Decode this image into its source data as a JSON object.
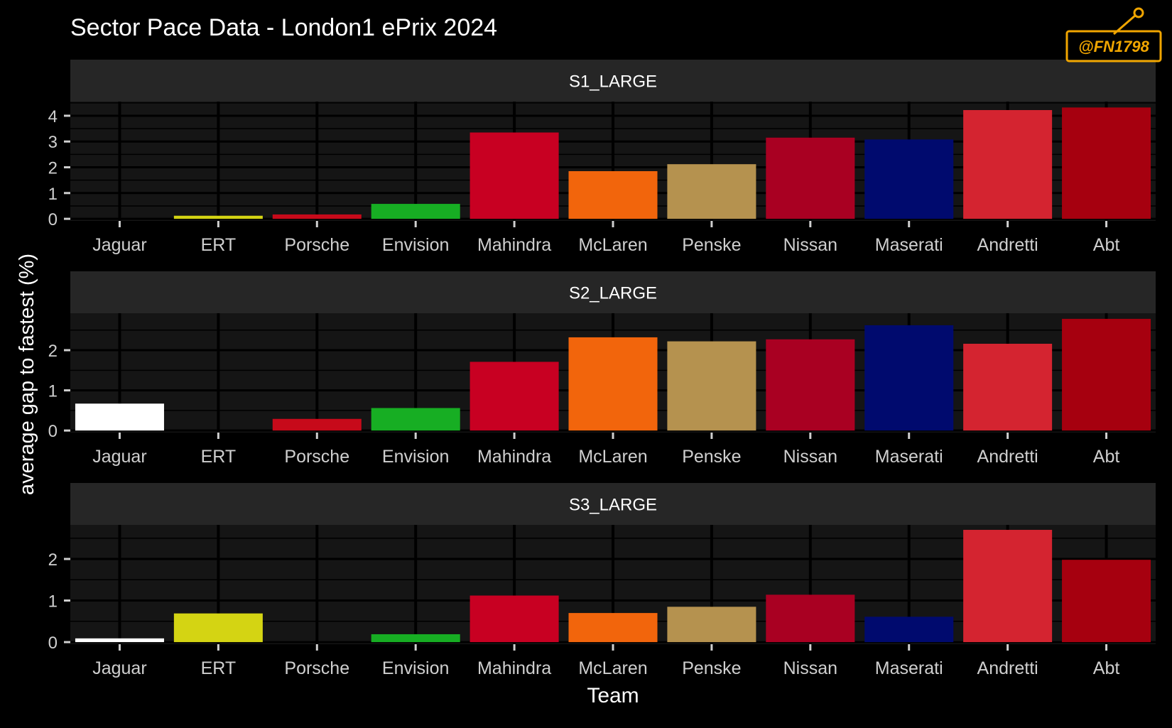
{
  "title": "Sector Pace Data - London1 ePrix 2024",
  "watermark": "@FN1798",
  "xlabel": "Team",
  "ylabel": "average gap to fastest (%)",
  "colors": {
    "background": "#000000",
    "panel": "#151515",
    "strip": "#262626",
    "grid": "#000000",
    "text": "#ffffff",
    "tick_text": "#cfcfcf",
    "watermark": "#f0a500"
  },
  "team_colors": {
    "Jaguar": "#ffffff",
    "ERT": "#d4d413",
    "Porsche": "#c70a1a",
    "Envision": "#17ae23",
    "Mahindra": "#c80022",
    "McLaren": "#f2650c",
    "Penske": "#b5924f",
    "Nissan": "#a90022",
    "Maserati": "#000a6e",
    "Andretti": "#d42430",
    "Abt": "#a6000f"
  },
  "chart_data": [
    {
      "type": "bar",
      "facet": "S1_LARGE",
      "categories": [
        "Jaguar",
        "ERT",
        "Porsche",
        "Envision",
        "Mahindra",
        "McLaren",
        "Penske",
        "Nissan",
        "Maserati",
        "Andretti",
        "Abt"
      ],
      "values": [
        0,
        0.12,
        0.17,
        0.58,
        3.35,
        1.85,
        2.12,
        3.15,
        3.08,
        4.22,
        4.32
      ],
      "yticks": [
        0,
        1,
        2,
        3,
        4
      ],
      "ylim": [
        -0.08,
        4.55
      ]
    },
    {
      "type": "bar",
      "facet": "S2_LARGE",
      "categories": [
        "Jaguar",
        "ERT",
        "Porsche",
        "Envision",
        "Mahindra",
        "McLaren",
        "Penske",
        "Nissan",
        "Maserati",
        "Andretti",
        "Abt"
      ],
      "values": [
        0.67,
        0,
        0.29,
        0.56,
        1.71,
        2.32,
        2.22,
        2.27,
        2.62,
        2.16,
        2.78
      ],
      "yticks": [
        0,
        1,
        2
      ],
      "ylim": [
        -0.05,
        2.92
      ]
    },
    {
      "type": "bar",
      "facet": "S3_LARGE",
      "categories": [
        "Jaguar",
        "ERT",
        "Porsche",
        "Envision",
        "Mahindra",
        "McLaren",
        "Penske",
        "Nissan",
        "Maserati",
        "Andretti",
        "Abt"
      ],
      "values": [
        0.09,
        0.69,
        0,
        0.19,
        1.12,
        0.7,
        0.85,
        1.14,
        0.61,
        2.7,
        1.98
      ],
      "yticks": [
        0,
        1,
        2
      ],
      "ylim": [
        -0.05,
        2.82
      ]
    }
  ]
}
